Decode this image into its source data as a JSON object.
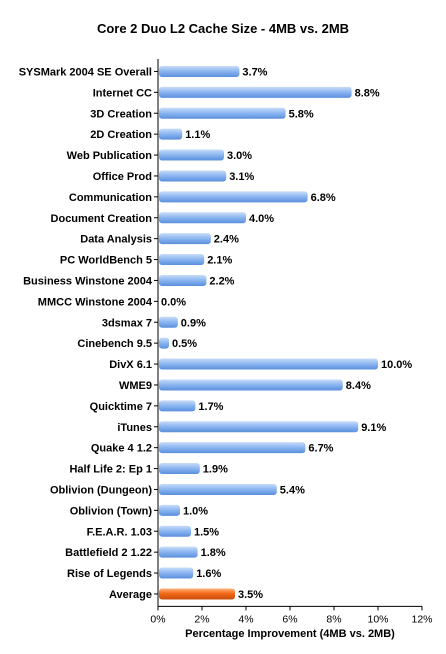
{
  "chart_data": {
    "type": "bar",
    "orientation": "horizontal",
    "title": "Core 2 Duo L2 Cache Size - 4MB vs. 2MB",
    "xlabel": "Percentage Improvement (4MB vs. 2MB)",
    "ylabel": "",
    "xlim": [
      0,
      12
    ],
    "x_ticks": [
      "0%",
      "2%",
      "4%",
      "6%",
      "8%",
      "10%",
      "12%"
    ],
    "x_tick_values": [
      0,
      2,
      4,
      6,
      8,
      10,
      12
    ],
    "grid": false,
    "categories": [
      "SYSMark 2004 SE Overall",
      "Internet CC",
      "3D Creation",
      "2D Creation",
      "Web Publication",
      "Office Prod",
      "Communication",
      "Document Creation",
      "Data Analysis",
      "PC WorldBench 5",
      "Business Winstone 2004",
      "MMCC Winstone 2004",
      "3dsmax 7",
      "Cinebench 9.5",
      "DivX 6.1",
      "WME9",
      "Quicktime 7",
      "iTunes",
      "Quake 4 1.2",
      "Half Life 2: Ep 1",
      "Oblivion (Dungeon)",
      "Oblivion (Town)",
      "F.E.A.R. 1.03",
      "Battlefield 2 1.22",
      "Rise of Legends",
      "Average"
    ],
    "values": [
      3.7,
      8.8,
      5.8,
      1.1,
      3.0,
      3.1,
      6.8,
      4.0,
      2.4,
      2.1,
      2.2,
      0.0,
      0.9,
      0.5,
      10.0,
      8.4,
      1.7,
      9.1,
      6.7,
      1.9,
      5.4,
      1.0,
      1.5,
      1.8,
      1.6,
      3.5
    ],
    "value_labels": [
      "3.7%",
      "8.8%",
      "5.8%",
      "1.1%",
      "3.0%",
      "3.1%",
      "6.8%",
      "4.0%",
      "2.4%",
      "2.1%",
      "2.2%",
      "0.0%",
      "0.9%",
      "0.5%",
      "10.0%",
      "8.4%",
      "1.7%",
      "9.1%",
      "6.7%",
      "1.9%",
      "5.4%",
      "1.0%",
      "1.5%",
      "1.8%",
      "1.6%",
      "3.5%"
    ],
    "colors": {
      "bar": "#8fb8f2",
      "bar_dark": "#5a8fdc",
      "highlight": "#f26a1b",
      "highlight_dark": "#c94d0a"
    },
    "highlight_category": "Average"
  }
}
